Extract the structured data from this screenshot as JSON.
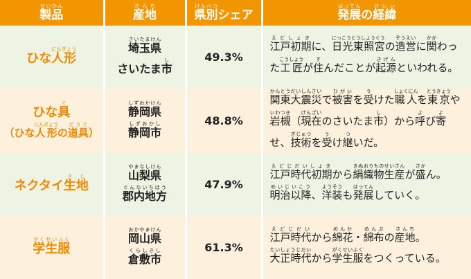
{
  "header": [
    [
      [
        "製品",
        "せいひん"
      ]
    ],
    [
      [
        "産地",
        "さんち"
      ]
    ],
    [
      [
        "県別",
        "けんべつ"
      ],
      "シェア"
    ],
    [
      [
        "発展",
        "はってん"
      ],
      "の",
      [
        "経緯",
        "けいい"
      ]
    ]
  ],
  "rows": [
    {
      "product": [
        [
          "ひな",
          [
            "人形",
            "にんぎょう"
          ]
        ]
      ],
      "origin": [
        [
          [
            "埼玉県",
            "さいたまけん"
          ]
        ],
        [
          "さいたま",
          [
            "市",
            "し"
          ]
        ]
      ],
      "share": "49.3%",
      "history": [
        [
          "江戸初期",
          "えどしょき"
        ],
        "に、",
        [
          "日光東照宮",
          "にっこうとうしょうぐう"
        ],
        "の",
        [
          "造営",
          "ぞうえい"
        ],
        "に",
        [
          "関",
          "かか"
        ],
        "わった",
        [
          "工匠",
          "こうしょう"
        ],
        "が",
        [
          "住",
          "す"
        ],
        "んだことが",
        [
          "起源",
          "きげん"
        ],
        "といわれる。"
      ]
    },
    {
      "product": [
        [
          "ひな",
          [
            "具",
            "ぐ"
          ]
        ],
        [
          "（ひな",
          [
            "人形",
            "にんぎょう"
          ],
          "の",
          [
            "道具",
            "どうぐ"
          ],
          "）"
        ]
      ],
      "origin": [
        [
          [
            "静岡県",
            "しずおかけん"
          ]
        ],
        [
          [
            "静岡市",
            "しずおかし"
          ]
        ]
      ],
      "share": "48.8%",
      "history": [
        [
          "関東大震災",
          "かんとうだいしんさい"
        ],
        "で",
        [
          "被害",
          "ひがい"
        ],
        "を",
        [
          "受",
          "う"
        ],
        "けた",
        [
          "職人",
          "しょくにん"
        ],
        "を",
        [
          "東京",
          "とうきょう"
        ],
        "や",
        [
          "岩槻",
          "いわつき"
        ],
        "（",
        [
          "現在",
          "げんざい"
        ],
        "のさいたま",
        [
          "市",
          "し"
        ],
        "）から",
        [
          "呼",
          "よ"
        ],
        "び",
        [
          "寄",
          "よ"
        ],
        "せ、",
        [
          "技術",
          "ぎじゅつ"
        ],
        "を",
        [
          "受",
          "う"
        ],
        "け",
        [
          "継",
          "つ"
        ],
        "いだ。"
      ]
    },
    {
      "product": [
        [
          "ネクタイ",
          [
            "生地",
            "きじ"
          ]
        ]
      ],
      "origin": [
        [
          [
            "山梨県",
            "やまなしけん"
          ]
        ],
        [
          [
            "郡内地方",
            "ぐんないちほう"
          ]
        ]
      ],
      "share": "47.9%",
      "history": [
        [
          "江戸時代初期",
          "えどじだいしょき"
        ],
        "から",
        [
          "絹織物生産",
          "きぬおりものせいさん"
        ],
        "が",
        [
          "盛",
          "さか"
        ],
        "ん。",
        [
          "明治以降",
          "めいじいこう"
        ],
        "、",
        [
          "洋装",
          "ようそう"
        ],
        "も",
        [
          "発展",
          "はってん"
        ],
        "していく。"
      ]
    },
    {
      "product": [
        [
          [
            "学生服",
            "がくせいふく"
          ]
        ]
      ],
      "origin": [
        [
          [
            "岡山県",
            "おかやまけん"
          ]
        ],
        [
          [
            "倉敷市",
            "くらしきし"
          ]
        ]
      ],
      "share": "61.3%",
      "history": [
        [
          "江戸時代",
          "えどじだい"
        ],
        "から",
        [
          "綿花",
          "めんか"
        ],
        "・",
        [
          "綿布",
          "めんぷ"
        ],
        "の",
        [
          "産地",
          "さんち"
        ],
        "。",
        [
          "大正時代",
          "たいしょうじだい"
        ],
        "から",
        [
          "学生服",
          "がくせいふく"
        ],
        "をつくっている。"
      ]
    }
  ]
}
